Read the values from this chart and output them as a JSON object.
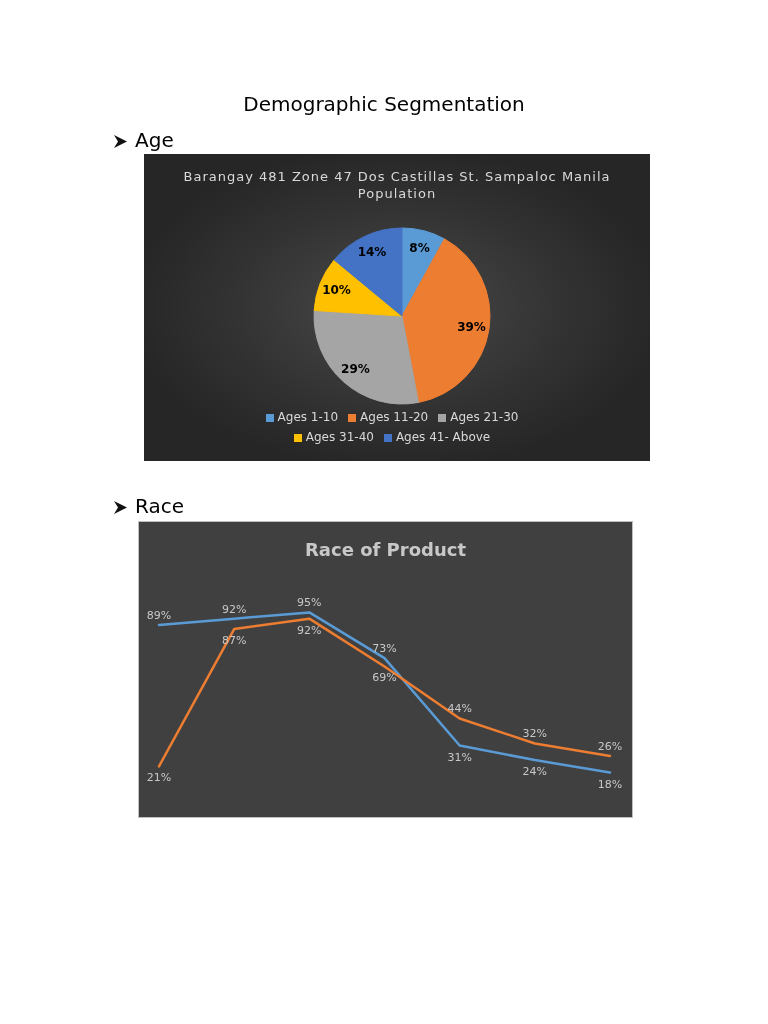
{
  "chart_data": [
    {
      "type": "pie",
      "title": "Barangay 481 Zone 47 Dos Castillas St. Sampaloc Manila Population",
      "categories": [
        "Ages 1-10",
        "Ages 11-20",
        "Ages 21-30",
        "Ages 31-40",
        "Ages 41- Above"
      ],
      "values": [
        8,
        39,
        29,
        10,
        14
      ],
      "value_labels": [
        "8%",
        "39%",
        "29%",
        "10%",
        "14%"
      ],
      "colors": [
        "#5b9bd5",
        "#ed7d31",
        "#a5a5a5",
        "#ffc000",
        "#4472c4"
      ],
      "legend": "bottom",
      "annotations": [
        "Demographic Segmentation",
        "Age"
      ]
    },
    {
      "type": "line",
      "title": "Race of Product",
      "categories": [
        null,
        null,
        null,
        null,
        null,
        null,
        null
      ],
      "series": [
        {
          "color": "#5b9bd5",
          "values": [
            89,
            92,
            95,
            73,
            31,
            24,
            18
          ],
          "value_labels": [
            "89%",
            "92%",
            "95%",
            "73%",
            "31%",
            "24%",
            "18%"
          ]
        },
        {
          "color": "#ed7d31",
          "values": [
            21,
            87,
            92,
            69,
            44,
            32,
            26
          ],
          "value_labels": [
            "21%",
            "87%",
            "92%",
            "69%",
            "44%",
            "32%",
            "26%"
          ]
        }
      ],
      "marker": "none",
      "line_style": "solid",
      "tick_labels": false,
      "annotations": [
        "Race"
      ]
    }
  ]
}
